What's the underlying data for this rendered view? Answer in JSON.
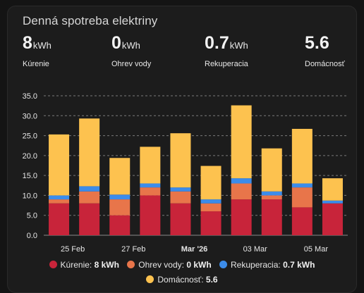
{
  "card": {
    "title": "Denná spotreba elektriny"
  },
  "stats": [
    {
      "value": "8",
      "unit": "kWh",
      "label": "Kúrenie"
    },
    {
      "value": "0",
      "unit": "kWh",
      "label": "Ohrev vody"
    },
    {
      "value": "0.7",
      "unit": "kWh",
      "label": "Rekuperacia"
    },
    {
      "value": "5.6",
      "unit": "",
      "label": "Domácnosť"
    }
  ],
  "colors": {
    "kurenie": "#c8243a",
    "ohrev": "#e8754a",
    "rekuperacia": "#3c8cea",
    "domacnost": "#fdc24f"
  },
  "legend": [
    {
      "label": "Kúrenie:",
      "value": "8 kWh"
    },
    {
      "label": "Ohrev vody:",
      "value": "0 kWh"
    },
    {
      "label": "Rekuperacia:",
      "value": "0.7 kWh"
    },
    {
      "label": "Domácnosť:",
      "value": "5.6"
    }
  ],
  "chart_data": {
    "type": "bar",
    "stacked": true,
    "x_tick_labels": [
      "25 Feb",
      "27 Feb",
      "Mar '26",
      "03 Mar",
      "05 Mar"
    ],
    "y_tick_labels": [
      "0.0",
      "5.0",
      "10.0",
      "15.0",
      "20.0",
      "25.0",
      "30.0",
      "35.0"
    ],
    "ylim": [
      0,
      35
    ],
    "grid": true,
    "legend_position": "bottom",
    "series": [
      {
        "name": "Kúrenie",
        "values": [
          8,
          8,
          5,
          10,
          8,
          6,
          9,
          9,
          7,
          8
        ]
      },
      {
        "name": "Ohrev vody",
        "values": [
          1,
          3,
          4,
          2,
          3,
          2,
          4,
          1,
          5,
          0
        ]
      },
      {
        "name": "Rekuperacia",
        "values": [
          1,
          1.3,
          1.2,
          1,
          1,
          1,
          1.3,
          1,
          1,
          0.7
        ]
      },
      {
        "name": "Domácnosť",
        "values": [
          15.3,
          17,
          9.2,
          9.2,
          13.6,
          8.4,
          18.3,
          10.8,
          13.7,
          5.6
        ]
      }
    ]
  }
}
